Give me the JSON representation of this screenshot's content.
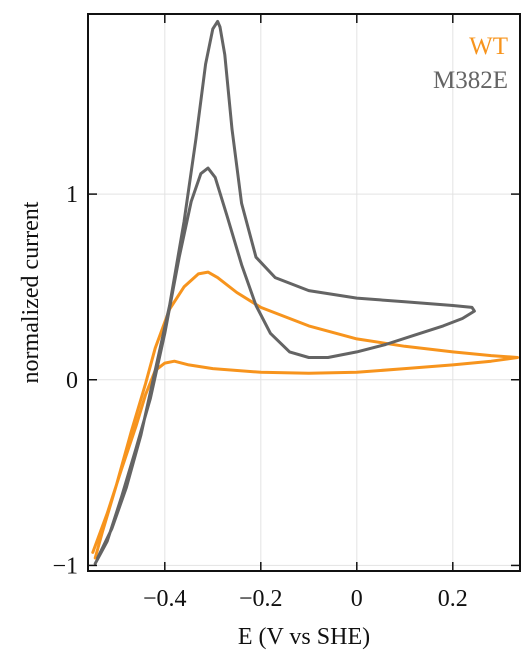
{
  "chart_data": {
    "type": "line",
    "title": "",
    "xlabel": "E (V vs SHE)",
    "ylabel": "normalized current",
    "xlim": [
      -0.56,
      0.34
    ],
    "ylim": [
      -1.03,
      1.97
    ],
    "xticks": [
      -0.4,
      -0.2,
      0,
      0.2
    ],
    "xtick_labels": [
      "−0.4",
      "−0.2",
      "0",
      "0.2"
    ],
    "yticks": [
      -1,
      0,
      1
    ],
    "ytick_labels": [
      "−1",
      "0",
      "1"
    ],
    "grid": true,
    "legend_position": "top-right",
    "series": [
      {
        "name": "WT",
        "color": "#f7941d",
        "points": [
          [
            -0.55,
            -0.93
          ],
          [
            -0.52,
            -0.72
          ],
          [
            -0.49,
            -0.48
          ],
          [
            -0.46,
            -0.25
          ],
          [
            -0.44,
            -0.08
          ],
          [
            -0.42,
            0.05
          ],
          [
            -0.4,
            0.09
          ],
          [
            -0.38,
            0.1
          ],
          [
            -0.35,
            0.08
          ],
          [
            -0.3,
            0.06
          ],
          [
            -0.2,
            0.04
          ],
          [
            -0.1,
            0.035
          ],
          [
            0.0,
            0.04
          ],
          [
            0.1,
            0.06
          ],
          [
            0.2,
            0.08
          ],
          [
            0.28,
            0.1
          ],
          [
            0.335,
            0.12
          ],
          [
            0.28,
            0.13
          ],
          [
            0.2,
            0.15
          ],
          [
            0.1,
            0.18
          ],
          [
            0.0,
            0.22
          ],
          [
            -0.1,
            0.29
          ],
          [
            -0.2,
            0.39
          ],
          [
            -0.25,
            0.47
          ],
          [
            -0.29,
            0.55
          ],
          [
            -0.31,
            0.58
          ],
          [
            -0.33,
            0.57
          ],
          [
            -0.36,
            0.5
          ],
          [
            -0.39,
            0.38
          ],
          [
            -0.42,
            0.17
          ],
          [
            -0.44,
            -0.02
          ],
          [
            -0.47,
            -0.28
          ],
          [
            -0.5,
            -0.56
          ],
          [
            -0.53,
            -0.82
          ],
          [
            -0.545,
            -0.96
          ]
        ]
      },
      {
        "name": "M382E",
        "color": "#646464",
        "points": [
          [
            -0.545,
            -0.99
          ],
          [
            -0.52,
            -0.87
          ],
          [
            -0.49,
            -0.63
          ],
          [
            -0.46,
            -0.37
          ],
          [
            -0.43,
            -0.1
          ],
          [
            -0.4,
            0.25
          ],
          [
            -0.37,
            0.66
          ],
          [
            -0.345,
            0.96
          ],
          [
            -0.325,
            1.11
          ],
          [
            -0.31,
            1.14
          ],
          [
            -0.295,
            1.09
          ],
          [
            -0.27,
            0.88
          ],
          [
            -0.24,
            0.62
          ],
          [
            -0.21,
            0.4
          ],
          [
            -0.18,
            0.25
          ],
          [
            -0.14,
            0.15
          ],
          [
            -0.1,
            0.12
          ],
          [
            -0.06,
            0.12
          ],
          [
            0.0,
            0.15
          ],
          [
            0.06,
            0.19
          ],
          [
            0.12,
            0.24
          ],
          [
            0.18,
            0.29
          ],
          [
            0.22,
            0.33
          ],
          [
            0.245,
            0.37
          ],
          [
            0.24,
            0.39
          ],
          [
            0.2,
            0.4
          ],
          [
            0.1,
            0.42
          ],
          [
            0.0,
            0.44
          ],
          [
            -0.1,
            0.48
          ],
          [
            -0.17,
            0.55
          ],
          [
            -0.21,
            0.66
          ],
          [
            -0.24,
            0.95
          ],
          [
            -0.26,
            1.35
          ],
          [
            -0.275,
            1.75
          ],
          [
            -0.285,
            1.9
          ],
          [
            -0.29,
            1.93
          ],
          [
            -0.3,
            1.89
          ],
          [
            -0.315,
            1.7
          ],
          [
            -0.335,
            1.3
          ],
          [
            -0.36,
            0.85
          ],
          [
            -0.39,
            0.4
          ],
          [
            -0.42,
            0.05
          ],
          [
            -0.45,
            -0.3
          ],
          [
            -0.48,
            -0.58
          ],
          [
            -0.51,
            -0.8
          ],
          [
            -0.54,
            -0.96
          ]
        ]
      }
    ]
  }
}
